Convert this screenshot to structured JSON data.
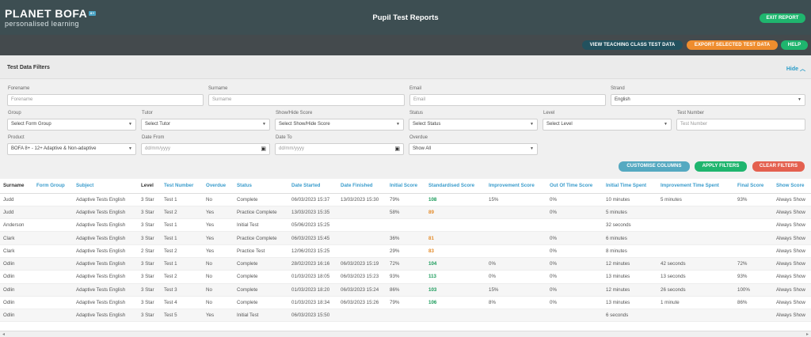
{
  "header": {
    "logo_main": "PLANET BOFA",
    "logo_badge": "8+",
    "logo_sub": "personalised learning",
    "title": "Pupil Test Reports",
    "exit_label": "EXIT REPORT"
  },
  "actions": {
    "view_teaching": "VIEW TEACHING CLASS TEST DATA",
    "export": "EXPORT SELECTED TEST DATA",
    "help": "HELP"
  },
  "filters": {
    "title": "Test Data Filters",
    "hide_label": "Hide",
    "forename": {
      "label": "Forename",
      "placeholder": "Forename"
    },
    "surname": {
      "label": "Surname",
      "placeholder": "Surname"
    },
    "email": {
      "label": "Email",
      "placeholder": "Email"
    },
    "strand": {
      "label": "Strand",
      "value": "English"
    },
    "group": {
      "label": "Group",
      "value": "Select Form Group"
    },
    "tutor": {
      "label": "Tutor",
      "value": "Select Tutor"
    },
    "show_hide": {
      "label": "Show/Hide Score",
      "value": "Select Show/Hide Score"
    },
    "status": {
      "label": "Status",
      "value": "Select Status"
    },
    "level": {
      "label": "Level",
      "value": "Select Level"
    },
    "test_number": {
      "label": "Test Number",
      "placeholder": "Test Number"
    },
    "product": {
      "label": "Product",
      "value": "BOFA 8+ - 12+ Adaptive & Non-adaptive"
    },
    "date_from": {
      "label": "Date From",
      "placeholder": "dd/mm/yyyy"
    },
    "date_to": {
      "label": "Date To",
      "placeholder": "dd/mm/yyyy"
    },
    "overdue": {
      "label": "Overdue",
      "value": "Show All"
    },
    "customise_label": "CUSTOMISE COLUMNS",
    "apply_label": "APPLY FILTERS",
    "clear_label": "CLEAR FILTERS"
  },
  "table": {
    "columns": [
      "Surname",
      "Form Group",
      "Subject",
      "Level",
      "Test Number",
      "Overdue",
      "Status",
      "Date Started",
      "Date Finished",
      "Initial Score",
      "Standardised Score",
      "Improvement Score",
      "Out Of Time Score",
      "Initial Time Spent",
      "Improvement Time Spent",
      "Final Score",
      "Show Score"
    ],
    "rows": [
      [
        "Judd",
        "",
        "Adaptive Tests English",
        "3 Star",
        "Test 1",
        "No",
        "Complete",
        "06/03/2023 15:37",
        "13/03/2023 15:30",
        "79%",
        "108",
        "15%",
        "0%",
        "10 minutes",
        "5 minutes",
        "93%",
        "Always Show"
      ],
      [
        "Judd",
        "",
        "Adaptive Tests English",
        "3 Star",
        "Test 2",
        "Yes",
        "Practice Complete",
        "13/03/2023 15:35",
        "",
        "58%",
        "89",
        "",
        "0%",
        "5 minutes",
        "",
        "",
        "Always Show"
      ],
      [
        "Anderson",
        "",
        "Adaptive Tests English",
        "3 Star",
        "Test 1",
        "Yes",
        "Initial Test",
        "05/06/2023 15:25",
        "",
        "",
        "",
        "",
        "",
        "32 seconds",
        "",
        "",
        "Always Show"
      ],
      [
        "Clark",
        "",
        "Adaptive Tests English",
        "3 Star",
        "Test 1",
        "Yes",
        "Practice Complete",
        "06/03/2023 15:45",
        "",
        "36%",
        "81",
        "",
        "0%",
        "6 minutes",
        "",
        "",
        "Always Show"
      ],
      [
        "Clark",
        "",
        "Adaptive Tests English",
        "2 Star",
        "Test 2",
        "Yes",
        "Practice Test",
        "12/06/2023 15:25",
        "",
        "29%",
        "83",
        "",
        "0%",
        "8 minutes",
        "",
        "",
        "Always Show"
      ],
      [
        "Odlin",
        "",
        "Adaptive Tests English",
        "3 Star",
        "Test 1",
        "No",
        "Complete",
        "28/02/2023 16:16",
        "06/03/2023 15:19",
        "72%",
        "104",
        "0%",
        "0%",
        "12 minutes",
        "42 seconds",
        "72%",
        "Always Show"
      ],
      [
        "Odlin",
        "",
        "Adaptive Tests English",
        "3 Star",
        "Test 2",
        "No",
        "Complete",
        "01/03/2023 18:05",
        "06/03/2023 15:23",
        "93%",
        "113",
        "0%",
        "0%",
        "13 minutes",
        "13 seconds",
        "93%",
        "Always Show"
      ],
      [
        "Odlin",
        "",
        "Adaptive Tests English",
        "3 Star",
        "Test 3",
        "No",
        "Complete",
        "01/03/2023 18:20",
        "06/03/2023 15:24",
        "86%",
        "103",
        "15%",
        "0%",
        "12 minutes",
        "26 seconds",
        "100%",
        "Always Show"
      ],
      [
        "Odlin",
        "",
        "Adaptive Tests English",
        "3 Star",
        "Test 4",
        "No",
        "Complete",
        "01/03/2023 18:34",
        "06/03/2023 15:26",
        "79%",
        "106",
        "8%",
        "0%",
        "13 minutes",
        "1 minute",
        "86%",
        "Always Show"
      ],
      [
        "Odlin",
        "",
        "Adaptive Tests English",
        "3 Star",
        "Test 5",
        "Yes",
        "Initial Test",
        "06/03/2023 15:50",
        "",
        "",
        "",
        "",
        "",
        "6 seconds",
        "",
        "",
        "Always Show"
      ]
    ]
  },
  "colors": {
    "good_score": "#1a9b5a",
    "warn_score": "#e48c2b",
    "link": "#3a9ccc",
    "header_bg": "#3d4e52"
  }
}
